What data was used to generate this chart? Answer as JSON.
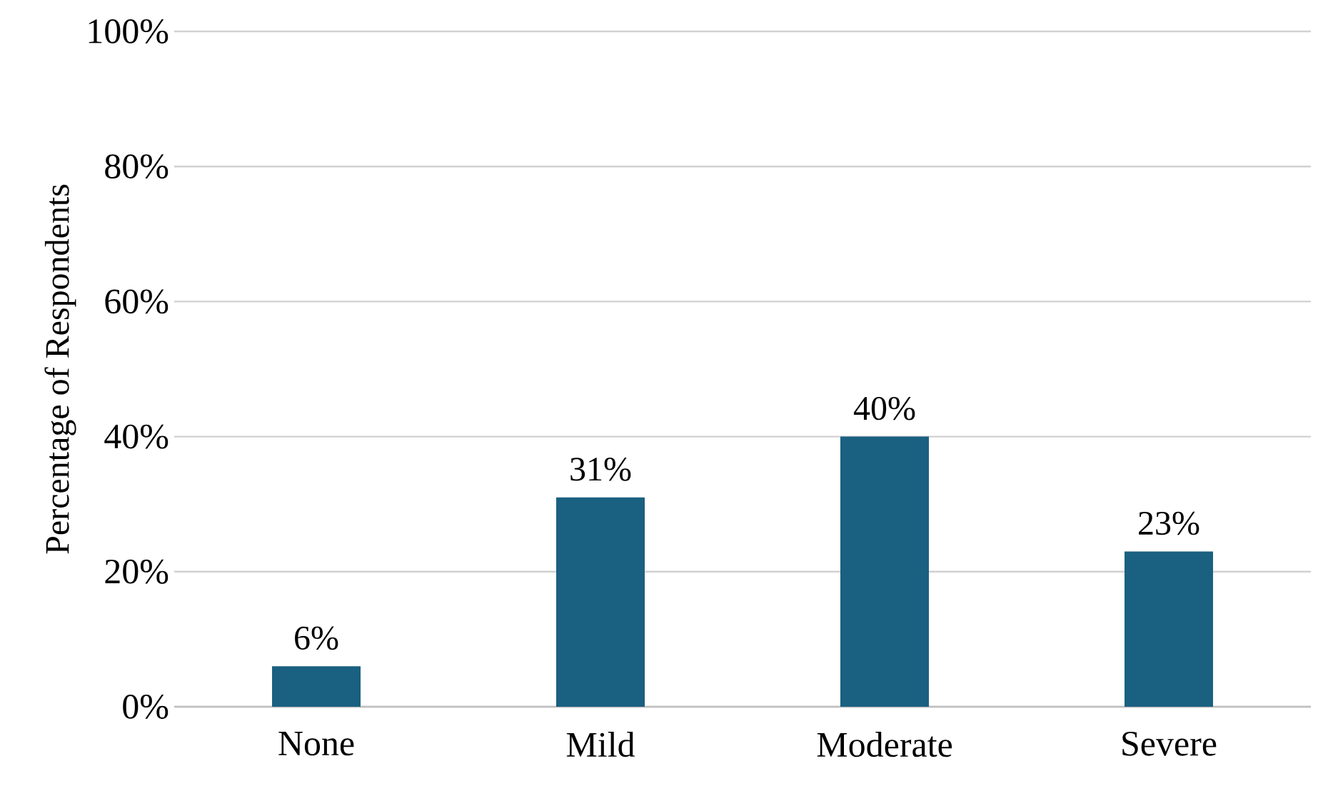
{
  "chart_data": {
    "type": "bar",
    "ylabel": "Percentage of Respondents",
    "categories": [
      "None",
      "Mild",
      "Moderate",
      "Severe"
    ],
    "values": [
      6,
      31,
      40,
      23
    ],
    "value_labels": [
      "6%",
      "31%",
      "40%",
      "23%"
    ],
    "color": "#1a6080",
    "ylim": [
      0,
      100
    ],
    "yticks": [
      {
        "value": 0,
        "label": "0%"
      },
      {
        "value": 20,
        "label": "20%"
      },
      {
        "value": 40,
        "label": "40%"
      },
      {
        "value": 60,
        "label": "60%"
      },
      {
        "value": 80,
        "label": "80%"
      },
      {
        "value": 100,
        "label": "100%"
      }
    ],
    "grid": "y"
  }
}
